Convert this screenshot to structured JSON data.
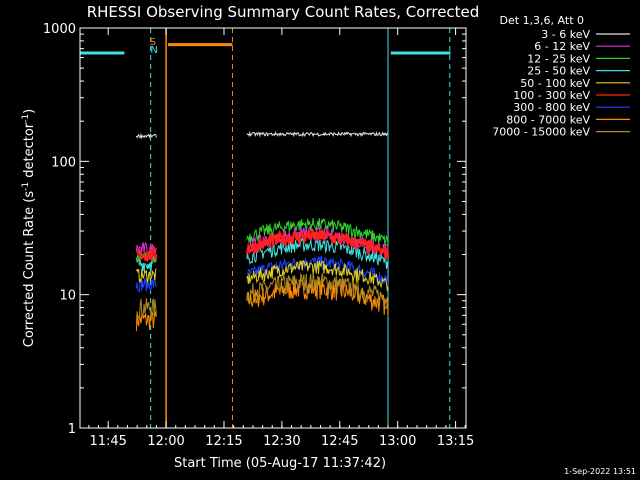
{
  "chart_data": {
    "type": "line",
    "title": "RHESSI Observing Summary Count Rates, Corrected",
    "xlabel": "Start Time (05-Aug-17 11:37:42)",
    "ylabel_main": "Corrected Count Rate (s",
    "ylabel_sup1": "-1",
    "ylabel_mid": " detector",
    "ylabel_sup2": "-1",
    "ylabel_end": ")",
    "x_unit": "minutes after 11:37:42",
    "xlim": [
      0,
      100
    ],
    "ylim": [
      1,
      1000
    ],
    "yscale": "log",
    "xticks": [
      {
        "label": "11:45",
        "value": 7.3
      },
      {
        "label": "12:00",
        "value": 22.3
      },
      {
        "label": "12:15",
        "value": 37.3
      },
      {
        "label": "12:30",
        "value": 52.3
      },
      {
        "label": "12:45",
        "value": 67.3
      },
      {
        "label": "13:00",
        "value": 82.3
      },
      {
        "label": "13:15",
        "value": 97.3
      }
    ],
    "yticks": [
      {
        "label": "1",
        "value": 1
      },
      {
        "label": "10",
        "value": 10
      },
      {
        "label": "100",
        "value": 100
      },
      {
        "label": "1000",
        "value": 1000
      }
    ],
    "legend": {
      "placement": "right",
      "header": "Det 1,3,6, Att 0"
    },
    "segments": [
      [
        14.6,
        19.8
      ],
      [
        43.2,
        79.8
      ]
    ],
    "series": [
      {
        "name": "3 - 6 keV",
        "color": "#e0e0e0",
        "values": [
          155,
          160
        ]
      },
      {
        "name": "6 - 12 keV",
        "color": "#e030e0",
        "values": [
          22,
          23
        ]
      },
      {
        "name": "12 - 25 keV",
        "color": "#30d030",
        "values": [
          19,
          27
        ]
      },
      {
        "name": "25 - 50 keV",
        "color": "#40e0e0",
        "values": [
          17,
          19
        ]
      },
      {
        "name": "50 - 100 keV",
        "color": "#e0d020",
        "values": [
          14,
          13
        ]
      },
      {
        "name": "100 - 300 keV",
        "color": "#ff2020",
        "values": [
          20,
          22
        ]
      },
      {
        "name": "300 - 800 keV",
        "color": "#2040ff",
        "values": [
          12,
          14
        ]
      },
      {
        "name": "800 - 7000 keV",
        "color": "#ff8c00",
        "values": [
          6.5,
          9
        ]
      },
      {
        "name": "7000 - 15000 keV",
        "color": "#b08a20",
        "values": [
          8,
          10
        ]
      }
    ],
    "annotations": [
      {
        "name": "saa-level",
        "color": "#40e0e0",
        "x": [
          0,
          11.5
        ],
        "y": 650
      },
      {
        "name": "saa-level",
        "color": "#40e0e0",
        "x": [
          80.5,
          96
        ],
        "y": 650
      },
      {
        "name": "flare-level",
        "color": "#ff8c00",
        "x": [
          22.8,
          39.5
        ],
        "y": 750
      }
    ],
    "markers": [
      {
        "label": "S",
        "color": "#ff8c00",
        "x": 19.6
      },
      {
        "label": "N",
        "color": "#40e0e0",
        "x": 19.8
      }
    ],
    "vlines_solid_cyan": [
      0,
      79.8
    ],
    "vlines_dash_cyan": [
      18.3,
      95.8
    ],
    "vlines_solid_orange": [
      22.3
    ],
    "vlines_dash_orange": [
      39.5
    ],
    "timestamp": "1-Sep-2022 13:51"
  }
}
